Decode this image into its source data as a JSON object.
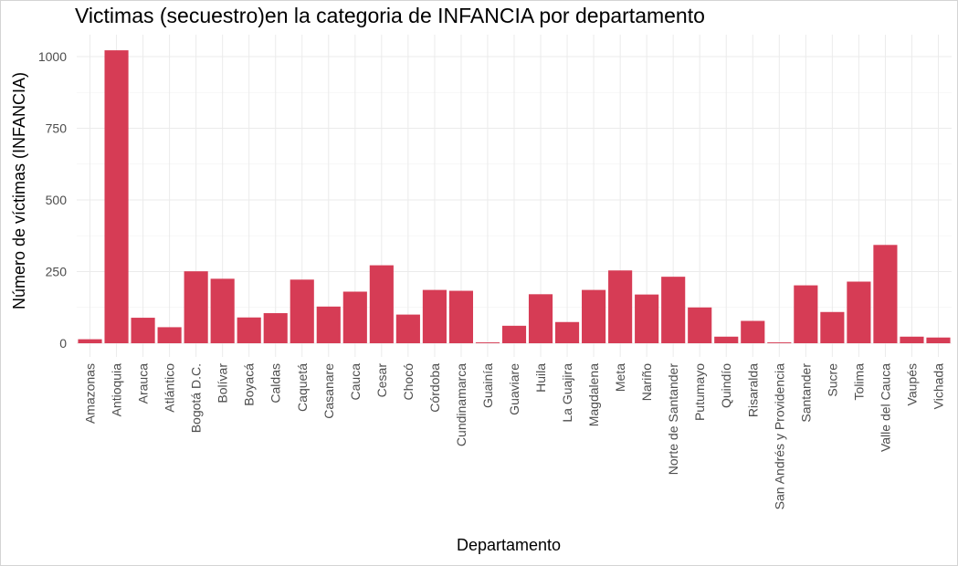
{
  "chart_data": {
    "type": "bar",
    "title": "Victimas (secuestro)en la categoria de INFANCIA por departamento",
    "xlabel": "Departamento",
    "ylabel": "Número de víctimas (INFANCIA)",
    "ylim": [
      0,
      1050
    ],
    "yticks": [
      "0",
      "250",
      "500",
      "750",
      "1000"
    ],
    "grid": true,
    "legend": "none",
    "bar_color": "#d63c55",
    "categories": [
      "Amazonas",
      "Antioquia",
      "Arauca",
      "Atlántico",
      "Bogotá D.C.",
      "Bolívar",
      "Boyacá",
      "Caldas",
      "Caquetá",
      "Casanare",
      "Cauca",
      "Cesar",
      "Chocó",
      "Córdoba",
      "Cundinamarca",
      "Guainía",
      "Guaviare",
      "Huila",
      "La Guajira",
      "Magdalena",
      "Meta",
      "Nariño",
      "Norte de Santander",
      "Putumayo",
      "Quindío",
      "Risaralda",
      "San Andrés y Providencia",
      "Santander",
      "Sucre",
      "Tolima",
      "Valle del Cauca",
      "Vaupés",
      "Vichada"
    ],
    "values": [
      14,
      1022,
      89,
      56,
      251,
      225,
      90,
      105,
      222,
      128,
      180,
      272,
      100,
      186,
      183,
      3,
      61,
      171,
      74,
      186,
      254,
      170,
      232,
      125,
      23,
      78,
      3,
      202,
      109,
      215,
      343,
      23,
      20
    ]
  }
}
